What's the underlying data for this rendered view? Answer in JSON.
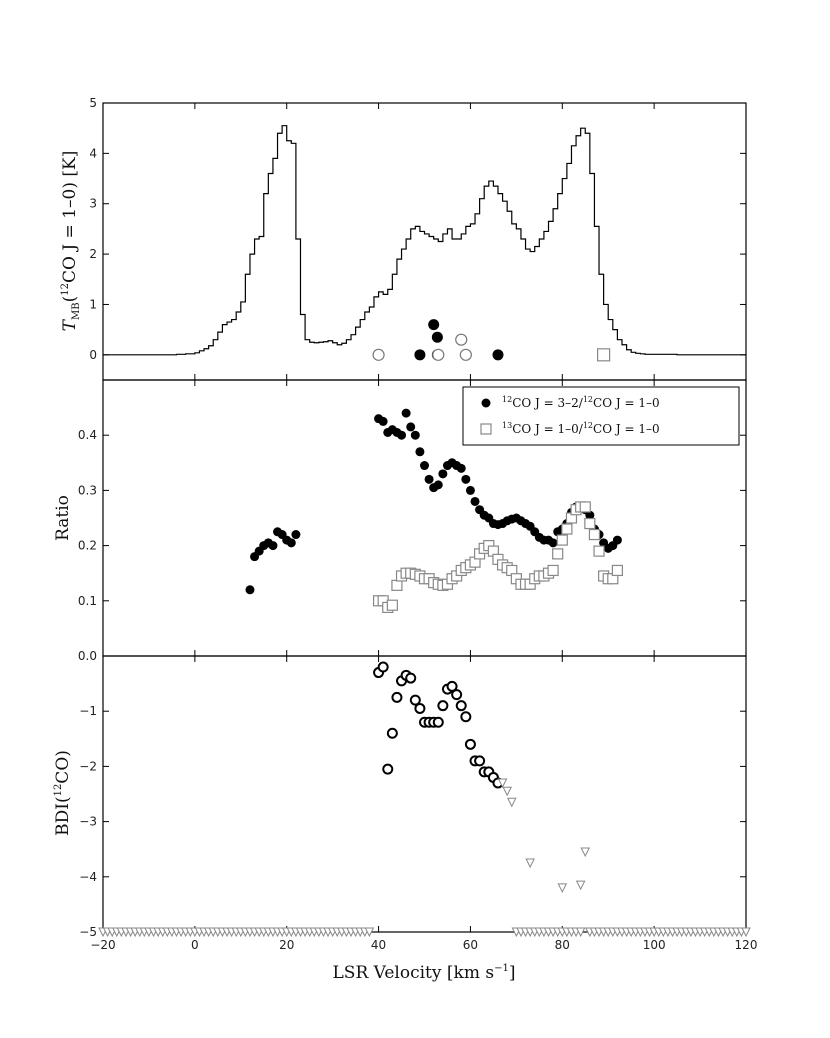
{
  "chart_data": [
    {
      "type": "line",
      "panel": "top",
      "ylabel": "T",
      "ylabel_sub": "MB",
      "ylabel_rest_a": "(",
      "ylabel_sup": "12",
      "ylabel_rest_b": "CO J = 1–0) [K]",
      "xlim": [
        -20,
        120
      ],
      "ylim": [
        -0.5,
        5
      ],
      "yticks": [
        "0",
        "1",
        "2",
        "3",
        "4",
        "5"
      ],
      "series": [
        {
          "style": "step",
          "x": [
            -20,
            -18,
            -16,
            -14,
            -12,
            -10,
            -8,
            -6,
            -4,
            -2,
            0,
            1,
            2,
            3,
            4,
            5,
            6,
            7,
            8,
            9,
            10,
            11,
            12,
            13,
            14,
            15,
            16,
            17,
            18,
            19,
            20,
            21,
            22,
            23,
            24,
            25,
            26,
            27,
            28,
            29,
            30,
            31,
            32,
            33,
            34,
            35,
            36,
            37,
            38,
            39,
            40,
            41,
            42,
            43,
            44,
            45,
            46,
            47,
            48,
            49,
            50,
            51,
            52,
            53,
            54,
            55,
            56,
            57,
            58,
            59,
            60,
            61,
            62,
            63,
            64,
            65,
            66,
            67,
            68,
            69,
            70,
            71,
            72,
            73,
            74,
            75,
            76,
            77,
            78,
            79,
            80,
            81,
            82,
            83,
            84,
            85,
            86,
            87,
            88,
            89,
            90,
            91,
            92,
            93,
            94,
            95,
            96,
            97,
            98,
            100,
            105,
            110,
            115,
            120
          ],
          "y": [
            0.0,
            0.0,
            0.0,
            0.0,
            0.0,
            0.0,
            0.0,
            0.0,
            0.01,
            0.02,
            0.04,
            0.08,
            0.12,
            0.18,
            0.3,
            0.45,
            0.6,
            0.65,
            0.7,
            0.85,
            1.05,
            1.6,
            2.0,
            2.3,
            2.35,
            3.2,
            3.6,
            3.9,
            4.4,
            4.55,
            4.25,
            4.2,
            2.3,
            0.8,
            0.3,
            0.25,
            0.24,
            0.25,
            0.26,
            0.28,
            0.24,
            0.2,
            0.23,
            0.3,
            0.4,
            0.55,
            0.7,
            0.85,
            0.95,
            1.15,
            1.25,
            1.2,
            1.3,
            1.6,
            1.9,
            2.1,
            2.3,
            2.5,
            2.55,
            2.45,
            2.4,
            2.35,
            2.3,
            2.25,
            2.4,
            2.5,
            2.3,
            2.3,
            2.4,
            2.55,
            2.6,
            2.8,
            3.1,
            3.35,
            3.45,
            3.35,
            3.2,
            3.05,
            2.85,
            2.6,
            2.5,
            2.3,
            2.1,
            2.05,
            2.15,
            2.3,
            2.45,
            2.65,
            2.9,
            3.2,
            3.5,
            3.8,
            4.15,
            4.35,
            4.5,
            4.4,
            3.6,
            2.55,
            1.6,
            1.0,
            0.7,
            0.5,
            0.3,
            0.2,
            0.1,
            0.05,
            0.03,
            0.02,
            0.01,
            0.01,
            0.0,
            0.0,
            0.0,
            0.0
          ]
        },
        {
          "style": "filled-circle",
          "x": [
            49,
            52,
            52.8,
            52.8,
            66
          ],
          "y": [
            0.0,
            0.6,
            0.35,
            0.0,
            0.0
          ]
        },
        {
          "style": "open-circle",
          "x": [
            40,
            53,
            58,
            59
          ],
          "y": [
            0.0,
            0.0,
            0.3,
            0.0
          ]
        },
        {
          "style": "open-square",
          "x": [
            89
          ],
          "y": [
            0.0
          ]
        }
      ]
    },
    {
      "type": "scatter",
      "panel": "middle",
      "ylabel": "Ratio",
      "xlim": [
        -20,
        120
      ],
      "ylim": [
        0,
        0.5
      ],
      "yticks": [
        "0.0",
        "0.1",
        "0.2",
        "0.3",
        "0.4"
      ],
      "legend": {
        "placement": "top-right",
        "entries": [
          {
            "style": "filled-circle",
            "sup1": "12",
            "mid": "CO J = 3–2/",
            "sup2": "12",
            "end": "CO J = 1–0"
          },
          {
            "style": "open-square",
            "sup1": "13",
            "mid": "CO J = 1–0/",
            "sup2": "12",
            "end": "CO J = 1–0"
          }
        ]
      },
      "series": [
        {
          "style": "filled-circle",
          "x": [
            12,
            13,
            14,
            15,
            16,
            17,
            18,
            19,
            20,
            21,
            22,
            40,
            41,
            42,
            43,
            44,
            45,
            46,
            47,
            48,
            49,
            50,
            51,
            52,
            53,
            54,
            55,
            56,
            57,
            58,
            59,
            60,
            61,
            62,
            63,
            64,
            65,
            66,
            67,
            68,
            69,
            70,
            71,
            72,
            73,
            74,
            75,
            76,
            77,
            78,
            79,
            80,
            81,
            82,
            83,
            84,
            85,
            86,
            87,
            88,
            89,
            90,
            91,
            92
          ],
          "y": [
            0.12,
            0.18,
            0.19,
            0.2,
            0.205,
            0.2,
            0.225,
            0.22,
            0.21,
            0.205,
            0.22,
            0.43,
            0.425,
            0.405,
            0.41,
            0.405,
            0.4,
            0.44,
            0.415,
            0.4,
            0.37,
            0.345,
            0.32,
            0.305,
            0.31,
            0.33,
            0.345,
            0.35,
            0.345,
            0.34,
            0.32,
            0.3,
            0.28,
            0.265,
            0.255,
            0.25,
            0.24,
            0.238,
            0.24,
            0.245,
            0.248,
            0.25,
            0.245,
            0.24,
            0.235,
            0.225,
            0.215,
            0.21,
            0.21,
            0.205,
            0.225,
            0.23,
            0.24,
            0.26,
            0.27,
            0.27,
            0.265,
            0.255,
            0.23,
            0.22,
            0.205,
            0.195,
            0.2,
            0.21
          ]
        },
        {
          "style": "open-square",
          "x": [
            40,
            41,
            42,
            43,
            44,
            45,
            46,
            47,
            48,
            49,
            50,
            51,
            52,
            53,
            54,
            55,
            56,
            57,
            58,
            59,
            60,
            61,
            62,
            63,
            64,
            65,
            66,
            67,
            68,
            69,
            70,
            71,
            72,
            73,
            74,
            75,
            76,
            77,
            78,
            79,
            80,
            81,
            82,
            83,
            84,
            85,
            86,
            87,
            88,
            89,
            90,
            91,
            92
          ],
          "y": [
            0.1,
            0.1,
            0.088,
            0.092,
            0.128,
            0.145,
            0.15,
            0.15,
            0.148,
            0.145,
            0.14,
            0.14,
            0.133,
            0.13,
            0.128,
            0.13,
            0.14,
            0.145,
            0.155,
            0.16,
            0.165,
            0.17,
            0.185,
            0.195,
            0.2,
            0.19,
            0.175,
            0.165,
            0.16,
            0.155,
            0.14,
            0.13,
            0.13,
            0.13,
            0.14,
            0.145,
            0.145,
            0.15,
            0.155,
            0.185,
            0.21,
            0.23,
            0.25,
            0.265,
            0.27,
            0.27,
            0.24,
            0.22,
            0.19,
            0.145,
            0.14,
            0.14,
            0.155
          ]
        }
      ]
    },
    {
      "type": "scatter",
      "panel": "bottom",
      "ylabel": "BDI(",
      "ylabel_sup": "12",
      "ylabel_rest": "CO)",
      "xlabel": "LSR Velocity [km s",
      "xlabel_sup": "−1",
      "xlabel_end": "]",
      "xlim": [
        -20,
        120
      ],
      "ylim": [
        -5,
        0
      ],
      "xticks": [
        "−20",
        "0",
        "20",
        "40",
        "60",
        "80",
        "100",
        "120"
      ],
      "yticks": [
        "−5",
        "−4",
        "−3",
        "−2",
        "−1"
      ],
      "series": [
        {
          "style": "open-circle",
          "x": [
            40,
            41,
            42,
            43,
            44,
            45,
            46,
            47,
            48,
            49,
            50,
            51,
            52,
            53,
            54,
            55,
            56,
            57,
            58,
            59,
            60,
            61,
            62,
            63,
            64,
            65,
            66
          ],
          "y": [
            -0.3,
            -0.2,
            -2.05,
            -1.4,
            -0.75,
            -0.45,
            -0.35,
            -0.4,
            -0.8,
            -0.95,
            -1.2,
            -1.2,
            -1.2,
            -1.2,
            -0.9,
            -0.6,
            -0.55,
            -0.7,
            -0.9,
            -1.1,
            -1.6,
            -1.9,
            -1.9,
            -2.1,
            -2.1,
            -2.2,
            -2.3
          ]
        },
        {
          "style": "open-triangle-down",
          "x": [
            67,
            68,
            69,
            73,
            80,
            84,
            85
          ],
          "y": [
            -2.3,
            -2.45,
            -2.65,
            -3.75,
            -4.2,
            -4.15,
            -3.55
          ]
        },
        {
          "style": "open-triangle-down",
          "x_ranges": [
            [
              -20,
              38,
              1
            ],
            [
              70,
              84,
              1
            ],
            [
              86,
              120,
              1
            ]
          ],
          "y_const": -5
        }
      ]
    }
  ]
}
